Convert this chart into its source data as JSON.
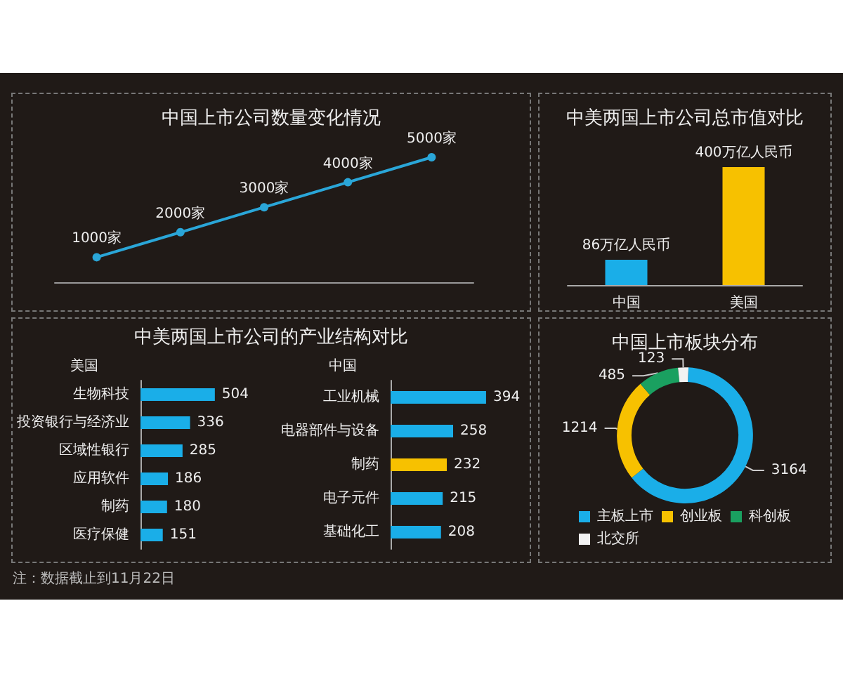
{
  "chart_data": [
    {
      "type": "line",
      "title": "中国上市公司数量变化情况",
      "categories": [
        null,
        null,
        null,
        null,
        null
      ],
      "values": [
        1000,
        2000,
        3000,
        4000,
        5000
      ],
      "value_labels": [
        "1000家",
        "2000家",
        "3000家",
        "4000家",
        "5000家"
      ],
      "color": "#2aa6d8",
      "marker": "circle"
    },
    {
      "type": "bar",
      "title": "中美两国上市公司总市值对比",
      "categories": [
        "中国",
        "美国"
      ],
      "values": [
        86,
        400
      ],
      "colors": [
        "#1aaee8",
        "#f7c100"
      ],
      "value_labels": [
        "86万亿人民币",
        "400万亿人民币"
      ]
    },
    {
      "type": "bar",
      "orientation": "horizontal",
      "title": "中美两国上市公司的产业结构对比",
      "subtitle": "美国",
      "categories": [
        "生物科技",
        "投资银行与经济业",
        "区域性银行",
        "应用软件",
        "制药",
        "医疗保健"
      ],
      "values": [
        504,
        336,
        285,
        186,
        180,
        151
      ],
      "color": "#1aaee8",
      "data_labels": true,
      "annotations": [
        "注：数据截止到11月22日"
      ]
    },
    {
      "type": "bar",
      "orientation": "horizontal",
      "subtitle": "中国",
      "categories": [
        "工业机械",
        "电器部件与设备",
        "制药",
        "电子元件",
        "基础化工"
      ],
      "values": [
        394,
        258,
        232,
        215,
        208
      ],
      "colors": [
        "#1aaee8",
        "#1aaee8",
        "#f7c100",
        "#1aaee8",
        "#1aaee8"
      ],
      "data_labels": true
    },
    {
      "type": "donut",
      "title": "中国上市板块分布",
      "categories": [
        "主板上市",
        "创业板",
        "科创板",
        "北交所"
      ],
      "values": [
        3164,
        1214,
        485,
        123
      ],
      "colors": [
        "#1aaee8",
        "#f7c100",
        "#1aa060",
        "#f2f2f2"
      ],
      "data_labels": true,
      "legend": "bottom"
    }
  ]
}
